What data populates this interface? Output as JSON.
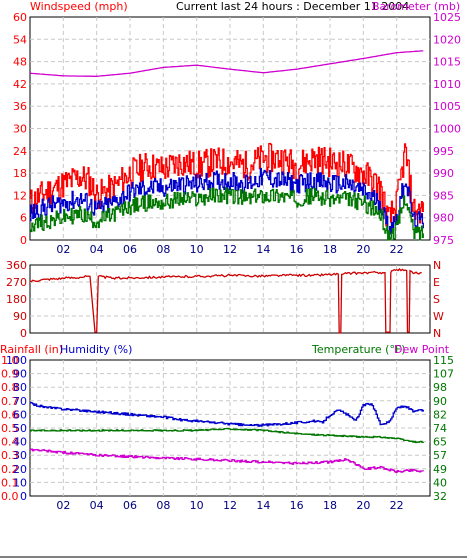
{
  "header": {
    "left_label": "Windspeed (mph)",
    "center_label": "Current last 24 hours : December 11 2004",
    "right_label": "Barometer (mb)"
  },
  "colors": {
    "red": "#ff0000",
    "dark_red": "#cc0000",
    "magenta": "#d000d0",
    "blue": "#0000cc",
    "green": "#007700",
    "grid": "#c8c8c8",
    "frame": "#000000"
  },
  "chart_data": [
    {
      "type": "line",
      "panel": "wind",
      "x_ticks": [
        "02",
        "04",
        "06",
        "08",
        "10",
        "12",
        "14",
        "16",
        "18",
        "20",
        "22"
      ],
      "left_axis": {
        "label": "Windspeed (mph)",
        "ticks": [
          0,
          6,
          12,
          18,
          24,
          30,
          36,
          42,
          48,
          54,
          60
        ],
        "range": [
          0,
          60
        ]
      },
      "right_axis": {
        "label": "Barometer (mb)",
        "ticks": [
          975,
          980,
          985,
          990,
          995,
          1000,
          1005,
          1010,
          1015,
          1020,
          1025
        ],
        "range": [
          975,
          1025
        ]
      },
      "series": [
        {
          "color": "red",
          "axis": "left",
          "x": [
            0,
            1,
            2,
            3,
            3.5,
            4,
            5,
            6,
            7,
            8,
            9,
            10,
            11,
            12,
            13,
            14,
            15,
            16,
            17,
            18,
            19,
            20,
            21,
            21.5,
            22,
            22.5,
            23
          ],
          "y": [
            10,
            13,
            15,
            17,
            16,
            12,
            14,
            18,
            20,
            19,
            21,
            20,
            21,
            21,
            20,
            22,
            22,
            20,
            22,
            21,
            20,
            18,
            14,
            5,
            10,
            24,
            8
          ]
        },
        {
          "color": "blue",
          "axis": "left",
          "x": [
            0,
            1,
            2,
            3,
            3.5,
            4,
            5,
            6,
            7,
            8,
            9,
            10,
            11,
            12,
            13,
            14,
            15,
            16,
            17,
            18,
            19,
            20,
            21,
            21.5,
            22,
            22.5,
            23
          ],
          "y": [
            7,
            9,
            10,
            11,
            10,
            8,
            10,
            13,
            14,
            14,
            15,
            15,
            16,
            16,
            15,
            17,
            16,
            15,
            16,
            15,
            15,
            13,
            10,
            3,
            6,
            17,
            5
          ]
        },
        {
          "color": "green",
          "axis": "left",
          "x": [
            0,
            1,
            2,
            3,
            3.5,
            4,
            5,
            6,
            7,
            8,
            9,
            10,
            11,
            12,
            13,
            14,
            15,
            16,
            17,
            18,
            19,
            20,
            21,
            21.5,
            22,
            22.5,
            23
          ],
          "y": [
            4,
            5,
            6,
            7,
            6,
            5,
            7,
            9,
            10,
            10,
            11,
            11,
            12,
            12,
            11,
            12,
            12,
            11,
            12,
            11,
            11,
            10,
            7,
            1,
            3,
            12,
            2
          ]
        },
        {
          "color": "magenta",
          "axis": "right",
          "x": [
            0,
            2,
            4,
            6,
            8,
            10,
            12,
            14,
            16,
            18,
            20,
            22,
            23.5
          ],
          "y": [
            1012.4,
            1011.8,
            1011.7,
            1012.4,
            1013.7,
            1014.2,
            1013.3,
            1012.5,
            1013.3,
            1014.5,
            1015.7,
            1017,
            1017.4
          ]
        }
      ]
    },
    {
      "type": "line",
      "panel": "direction",
      "left_axis": {
        "ticks": [
          0,
          90,
          180,
          270,
          360
        ],
        "range": [
          0,
          360
        ]
      },
      "right_axis": {
        "ticks": [
          "N",
          "W",
          "S",
          "E",
          "N"
        ]
      },
      "series": [
        {
          "color": "dark_red",
          "axis": "left",
          "x": [
            0,
            1,
            2,
            3,
            3.4,
            3.6,
            3.9,
            4.1,
            5,
            6,
            7,
            8,
            9,
            10,
            11,
            12,
            13,
            14,
            15,
            16,
            17,
            18,
            18.5,
            18.55,
            18.65,
            18.7,
            19,
            20,
            21,
            21.3,
            21.35,
            21.4,
            21.6,
            21.65,
            21.7,
            22,
            22.6,
            22.65,
            22.75,
            22.8,
            23,
            23.5
          ],
          "y": [
            275,
            285,
            290,
            295,
            300,
            300,
            5,
            300,
            290,
            292,
            295,
            296,
            298,
            300,
            302,
            305,
            303,
            302,
            305,
            306,
            305,
            310,
            312,
            0,
            0,
            310,
            315,
            318,
            320,
            320,
            5,
            5,
            5,
            320,
            330,
            335,
            330,
            5,
            5,
            330,
            315,
            320
          ]
        }
      ]
    },
    {
      "type": "line",
      "panel": "humidity",
      "header_labels": [
        "Rainfall (in)",
        "Humidity (%)",
        "Temperature (°F)",
        "Dew Point"
      ],
      "rain_axis": {
        "label": "Rainfall (in)",
        "ticks": [
          "0.0",
          "0.1",
          "0.2",
          "0.3",
          "0.4",
          "0.5",
          "0.6",
          "0.7",
          "0.8",
          "0.9",
          "1.0"
        ]
      },
      "humidity_axis": {
        "label": "Humidity (%)",
        "ticks": [
          0,
          10,
          20,
          30,
          40,
          50,
          60,
          70,
          80,
          90,
          100
        ],
        "range": [
          0,
          100
        ]
      },
      "temp_axis": {
        "label": "Temperature (°F)",
        "ticks": [
          32,
          40,
          49,
          57,
          65,
          74,
          82,
          90,
          98,
          107,
          115
        ],
        "range": [
          32,
          115
        ]
      },
      "series": [
        {
          "color": "blue",
          "axis": "humidity",
          "x": [
            0,
            1,
            2,
            3,
            4,
            5,
            6,
            7,
            8,
            9,
            10,
            11,
            12,
            13,
            14,
            15,
            16,
            17,
            17.5,
            18,
            18.5,
            19,
            19.5,
            20,
            20.5,
            21,
            21.5,
            22,
            22.5,
            23,
            23.5
          ],
          "y": [
            68,
            65,
            64,
            63,
            62,
            61,
            60,
            59,
            58,
            56,
            55,
            54,
            53,
            52,
            52,
            53,
            54,
            55,
            54,
            60,
            63,
            60,
            55,
            67,
            68,
            53,
            54,
            65,
            66,
            62,
            63
          ]
        },
        {
          "color": "green",
          "axis": "temp",
          "x": [
            0,
            2,
            4,
            6,
            8,
            10,
            12,
            14,
            16,
            18,
            20,
            21,
            22,
            23,
            23.5
          ],
          "y": [
            72,
            72,
            72,
            72,
            72,
            72,
            73,
            72,
            70,
            69,
            68,
            68,
            67,
            65,
            65
          ]
        },
        {
          "color": "magenta",
          "axis": "humidity",
          "x": [
            0,
            2,
            4,
            6,
            8,
            10,
            12,
            14,
            16,
            18,
            19,
            20,
            21,
            22,
            23,
            23.5
          ],
          "y": [
            34,
            32,
            30,
            29,
            28,
            27,
            26,
            25,
            24,
            25,
            27,
            20,
            21,
            18,
            19,
            18
          ]
        }
      ]
    }
  ]
}
